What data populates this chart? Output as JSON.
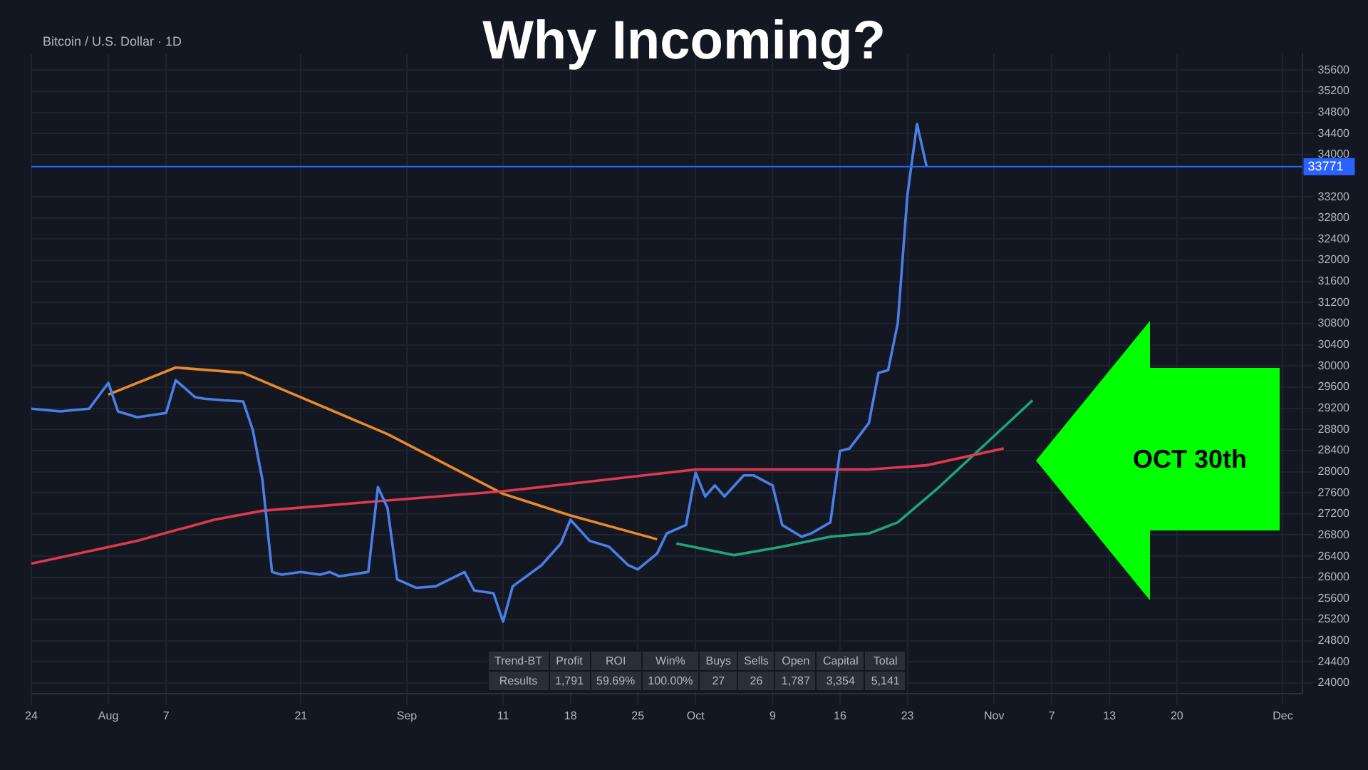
{
  "chart_data": {
    "type": "line",
    "title": "Why Incoming?",
    "subtitle": "Bitcoin / U.S. Dollar · 1D",
    "annotations": [
      "OCT 30th",
      "Trend-BT",
      "Profit",
      "ROI",
      "Win%",
      "Buys",
      "Sells",
      "Open",
      "Capital",
      "Total",
      "Results",
      "1,791",
      "59.69%",
      "100.00%",
      "27",
      "26",
      "1,787",
      "3,354",
      "5,141"
    ],
    "series": [
      {
        "color": "#4a7fe6",
        "x": [
          "--07-24",
          "--07-27",
          "--07-30",
          "--08-01",
          "--08-02",
          "--08-04",
          "--08-07",
          "--08-08",
          "--08-10",
          "--08-11",
          "--08-13",
          "--08-15",
          "--08-16",
          "--08-17",
          "--08-18",
          "--08-19",
          "--08-21",
          "--08-23",
          "--08-24",
          "--08-25",
          "--08-28",
          "--08-29",
          "--08-30",
          "--08-31",
          "--09-02",
          "--09-04",
          "--09-07",
          "--09-08",
          "--09-10",
          "--09-11",
          "--09-12",
          "--09-15",
          "--09-17",
          "--09-18",
          "--09-20",
          "--09-22",
          "--09-24",
          "--09-25",
          "--09-27",
          "--09-28",
          "--09-30",
          "--10-01",
          "--10-02",
          "--10-03",
          "--10-04",
          "--10-06",
          "--10-07",
          "--10-09",
          "--10-10",
          "--10-12",
          "--10-13",
          "--10-15",
          "--10-16",
          "--10-17",
          "--10-19",
          "--10-20",
          "--10-21",
          "--10-22",
          "--10-23",
          "--10-24",
          "--10-25"
        ],
        "values": [
          29190,
          29140,
          29190,
          29680,
          29140,
          29030,
          29110,
          29730,
          29410,
          29380,
          29350,
          29330,
          28790,
          27850,
          26100,
          26050,
          26100,
          26050,
          26100,
          26020,
          26100,
          27710,
          27310,
          25960,
          25800,
          25830,
          26100,
          25750,
          25700,
          25160,
          25830,
          26230,
          26640,
          27090,
          26690,
          26580,
          26230,
          26150,
          26450,
          26830,
          26990,
          27980,
          27530,
          27740,
          27530,
          27930,
          27930,
          27740,
          26990,
          26770,
          26830,
          27040,
          28390,
          28440,
          28920,
          29870,
          29920,
          30810,
          33230,
          34580,
          33770
        ]
      },
      {
        "color": "#e0384f",
        "x": [
          "--07-24",
          "--08-04",
          "--08-12",
          "--08-17",
          "--08-29",
          "--09-11",
          "--09-18",
          "--10-01",
          "--10-19",
          "--10-25",
          "--11-02"
        ],
        "values": [
          26260,
          26690,
          27090,
          27260,
          27440,
          27630,
          27770,
          28040,
          28040,
          28120,
          28440
        ]
      },
      {
        "color": "#1fa37a",
        "x": [
          "--09-29",
          "--10-05",
          "--10-10",
          "--10-15",
          "--10-19",
          "--10-22",
          "--10-26",
          "--11-05"
        ],
        "values": [
          26640,
          26420,
          26580,
          26770,
          26830,
          27040,
          27660,
          29350
        ]
      },
      {
        "color": "#e8892a",
        "x": [
          "--08-01",
          "--08-08",
          "--08-15",
          "--08-30",
          "--09-11",
          "--09-18",
          "--09-27"
        ],
        "values": [
          29460,
          29970,
          29870,
          28710,
          27580,
          27170,
          26720
        ]
      }
    ],
    "xlim": [
      "--07-24",
      "--12-03"
    ],
    "xticks": [
      {
        "value": "--07-24",
        "label": "24"
      },
      {
        "value": "--08-01",
        "label": "Aug"
      },
      {
        "value": "--08-07",
        "label": "7"
      },
      {
        "value": "--08-21",
        "label": "21"
      },
      {
        "value": "--09-01",
        "label": "Sep"
      },
      {
        "value": "--09-11",
        "label": "11"
      },
      {
        "value": "--09-18",
        "label": "18"
      },
      {
        "value": "--09-25",
        "label": "25"
      },
      {
        "value": "--10-01",
        "label": "Oct"
      },
      {
        "value": "--10-09",
        "label": "9"
      },
      {
        "value": "--10-16",
        "label": "16"
      },
      {
        "value": "--10-23",
        "label": "23"
      },
      {
        "value": "--11-01",
        "label": "Nov"
      },
      {
        "value": "--11-07",
        "label": "7"
      },
      {
        "value": "--11-13",
        "label": "13"
      },
      {
        "value": "--11-20",
        "label": "20"
      },
      {
        "value": "--12-01",
        "label": "Dec"
      }
    ],
    "ylim": [
      23800,
      35900
    ],
    "yticks": [
      24000,
      24400,
      24800,
      25200,
      25600,
      26000,
      26400,
      26800,
      27200,
      27600,
      28000,
      28400,
      28800,
      29200,
      29600,
      30000,
      30400,
      30800,
      31200,
      31600,
      32000,
      32400,
      32800,
      33200,
      34000,
      34400,
      34800,
      35200,
      35600
    ],
    "ref_lines": [
      {
        "axis": "y",
        "value": 33771,
        "label": "33771",
        "color": "#2962ff"
      }
    ],
    "grid": true,
    "marker": "none",
    "line_style": "solid"
  }
}
